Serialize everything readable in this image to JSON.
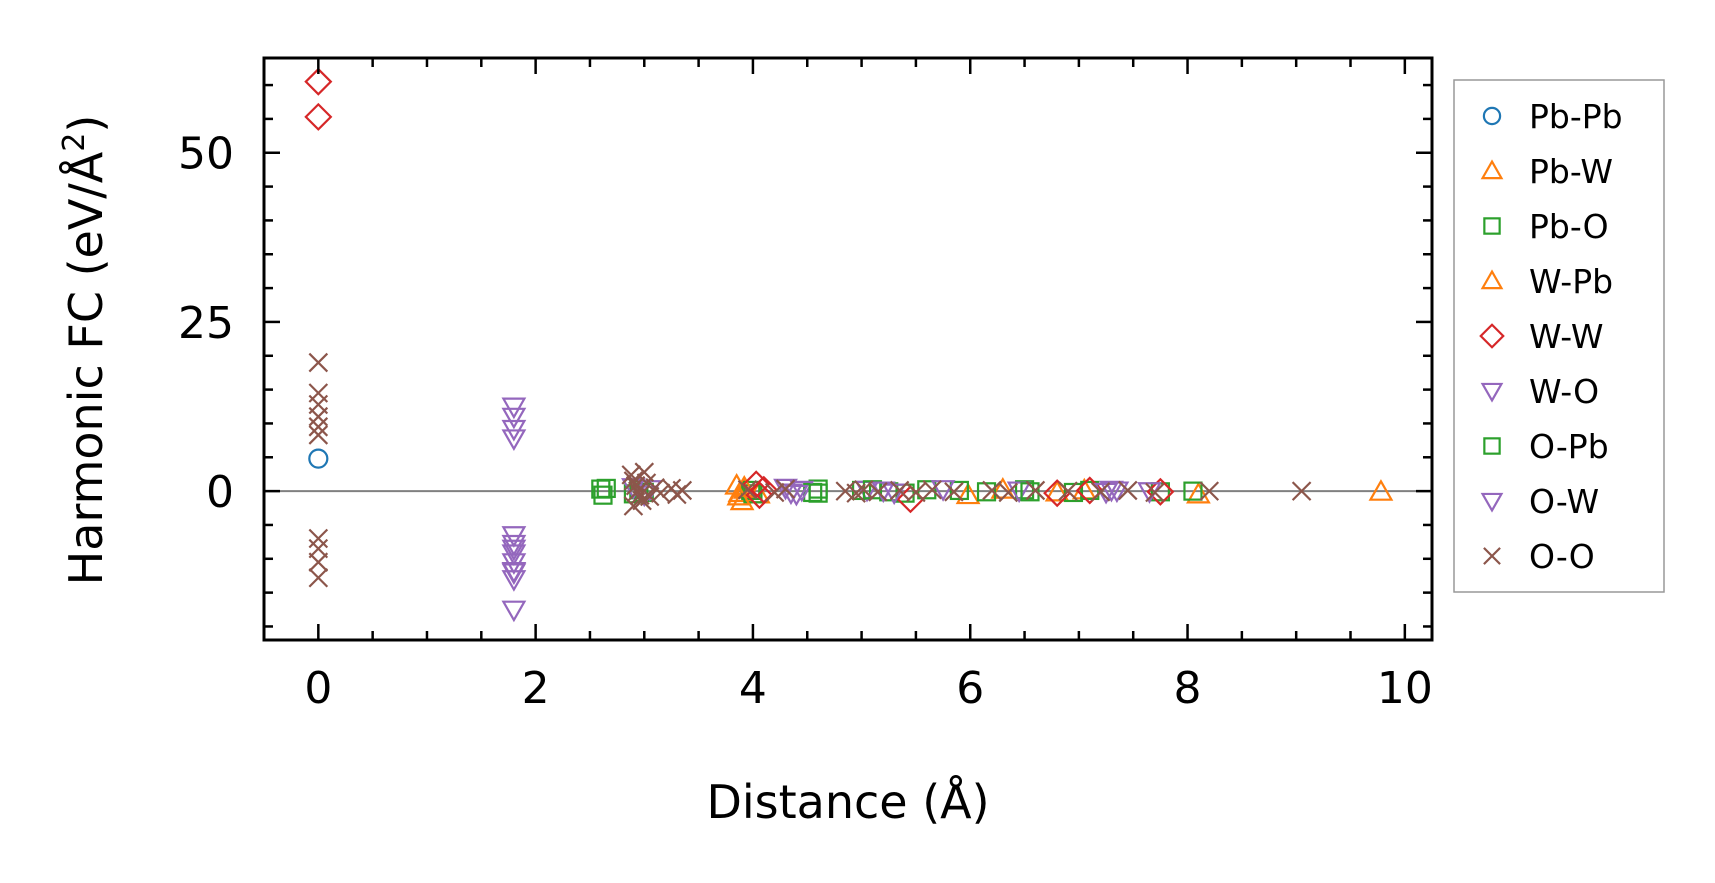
{
  "chart_data": {
    "type": "scatter",
    "xlabel": "Distance (Å)",
    "ylabel_main": "Harmonic FC (eV/Å",
    "ylabel_sup": "2",
    "ylabel_close": ")",
    "xlim": [
      -0.5,
      10.25
    ],
    "ylim": [
      -22,
      64
    ],
    "xticks": [
      0,
      2,
      4,
      6,
      8,
      10
    ],
    "xtick_labels": [
      "0",
      "2",
      "4",
      "6",
      "8",
      "10"
    ],
    "yticks": [
      0,
      25,
      50
    ],
    "ytick_labels": [
      "0",
      "25",
      "50"
    ],
    "x_minor_step": 0.5,
    "y_minor_step": 5,
    "zero_line": true,
    "grid": false,
    "legend_position": "outside-right",
    "series": [
      {
        "name": "Pb-Pb",
        "marker": "circle",
        "color": "#1f77b4",
        "points": [
          [
            0,
            4.8
          ]
        ]
      },
      {
        "name": "Pb-W",
        "marker": "triangle-up",
        "color": "#ff7f0e",
        "points": [
          [
            3.85,
            0.8
          ],
          [
            3.88,
            -0.3
          ],
          [
            3.9,
            -1.5
          ],
          [
            3.93,
            0.2
          ],
          [
            4.05,
            -0.5
          ],
          [
            5.98,
            -0.6
          ],
          [
            6.3,
            0.2
          ],
          [
            6.8,
            -0.2
          ],
          [
            7.05,
            0.1
          ],
          [
            8.1,
            -0.5
          ],
          [
            9.78,
            -0.1
          ]
        ]
      },
      {
        "name": "Pb-O",
        "marker": "square",
        "color": "#2ca02c",
        "points": [
          [
            2.6,
            0.3
          ],
          [
            2.62,
            -0.6
          ],
          [
            2.9,
            -0.4
          ],
          [
            2.95,
            0.2
          ],
          [
            3.0,
            -0.2
          ],
          [
            3.98,
            0.1
          ],
          [
            4.0,
            -0.4
          ],
          [
            4.55,
            -0.2
          ],
          [
            4.6,
            0.3
          ],
          [
            5.0,
            0.1
          ],
          [
            5.25,
            -0.1
          ],
          [
            5.4,
            -0.3
          ],
          [
            5.6,
            0.2
          ],
          [
            5.9,
            0.1
          ],
          [
            6.15,
            -0.1
          ],
          [
            6.5,
            0.2
          ],
          [
            6.95,
            -0.2
          ],
          [
            7.1,
            0.1
          ],
          [
            7.75,
            -0.1
          ],
          [
            8.05,
            0.0
          ]
        ]
      },
      {
        "name": "W-Pb",
        "marker": "triangle-up",
        "color": "#ff7f0e",
        "points": [
          [
            3.87,
            -0.8
          ],
          [
            3.92,
            0.5
          ]
        ]
      },
      {
        "name": "W-W",
        "marker": "diamond",
        "color": "#d62728",
        "points": [
          [
            0,
            60.5
          ],
          [
            0,
            55.3
          ],
          [
            4.03,
            1.0
          ],
          [
            4.06,
            -0.6
          ],
          [
            4.1,
            0.2
          ],
          [
            5.45,
            -1.2
          ],
          [
            6.8,
            -0.3
          ],
          [
            7.1,
            0.1
          ],
          [
            7.75,
            -0.1
          ]
        ]
      },
      {
        "name": "W-O",
        "marker": "triangle-down",
        "color": "#9467bd",
        "points": [
          [
            1.8,
            12.5
          ],
          [
            1.8,
            11.0
          ],
          [
            1.8,
            9.2
          ],
          [
            1.8,
            7.8
          ],
          [
            1.8,
            -6.5
          ],
          [
            1.8,
            -7.8
          ],
          [
            1.8,
            -9.2
          ],
          [
            1.8,
            -10.5
          ],
          [
            1.8,
            -11.8
          ],
          [
            1.8,
            -13.0
          ],
          [
            1.8,
            -17.5
          ],
          [
            2.9,
            0.6
          ],
          [
            3.0,
            -0.5
          ],
          [
            3.05,
            0.3
          ],
          [
            4.3,
            0.5
          ],
          [
            4.4,
            -0.4
          ],
          [
            4.45,
            0.2
          ],
          [
            5.05,
            0.2
          ],
          [
            5.3,
            -0.2
          ],
          [
            5.75,
            0.3
          ],
          [
            6.45,
            0.1
          ],
          [
            7.25,
            -0.1
          ],
          [
            7.35,
            0.1
          ],
          [
            7.65,
            0.0
          ]
        ]
      },
      {
        "name": "O-Pb",
        "marker": "square",
        "color": "#2ca02c",
        "points": [
          [
            2.65,
            0.4
          ],
          [
            4.6,
            -0.3
          ],
          [
            5.1,
            0.2
          ],
          [
            6.55,
            -0.1
          ]
        ]
      },
      {
        "name": "O-W",
        "marker": "triangle-down",
        "color": "#9467bd",
        "points": [
          [
            1.8,
            -8.5
          ],
          [
            1.8,
            -12.0
          ],
          [
            4.35,
            -0.2
          ],
          [
            5.2,
            0.1
          ],
          [
            7.3,
            0.2
          ]
        ]
      },
      {
        "name": "O-O",
        "marker": "x",
        "color": "#8c564b",
        "points": [
          [
            0,
            19.0
          ],
          [
            0,
            14.5
          ],
          [
            0,
            12.8
          ],
          [
            0,
            11.0
          ],
          [
            0,
            9.5
          ],
          [
            0,
            8.3
          ],
          [
            0,
            -7.0
          ],
          [
            0,
            -8.5
          ],
          [
            0,
            -10.5
          ],
          [
            0,
            -12.8
          ],
          [
            2.88,
            2.4
          ],
          [
            2.9,
            1.5
          ],
          [
            2.92,
            0.8
          ],
          [
            2.94,
            0.0
          ],
          [
            2.96,
            -0.6
          ],
          [
            2.98,
            -1.4
          ],
          [
            2.9,
            -2.2
          ],
          [
            3.0,
            2.8
          ],
          [
            3.02,
            1.2
          ],
          [
            3.05,
            -0.8
          ],
          [
            3.1,
            0.5
          ],
          [
            3.15,
            -0.3
          ],
          [
            3.25,
            0.4
          ],
          [
            3.3,
            -0.5
          ],
          [
            3.35,
            0.1
          ],
          [
            3.95,
            0.2
          ],
          [
            4.2,
            -0.2
          ],
          [
            4.3,
            0.3
          ],
          [
            4.85,
            0.0
          ],
          [
            4.95,
            -0.3
          ],
          [
            5.02,
            0.2
          ],
          [
            5.15,
            -0.1
          ],
          [
            5.35,
            0.1
          ],
          [
            5.5,
            -0.2
          ],
          [
            5.65,
            0.2
          ],
          [
            5.85,
            -0.1
          ],
          [
            6.2,
            0.1
          ],
          [
            6.35,
            -0.2
          ],
          [
            6.6,
            0.1
          ],
          [
            6.9,
            0.0
          ],
          [
            7.2,
            -0.1
          ],
          [
            7.45,
            0.1
          ],
          [
            7.7,
            -0.2
          ],
          [
            8.2,
            0.0
          ],
          [
            9.05,
            0.0
          ]
        ]
      }
    ]
  }
}
